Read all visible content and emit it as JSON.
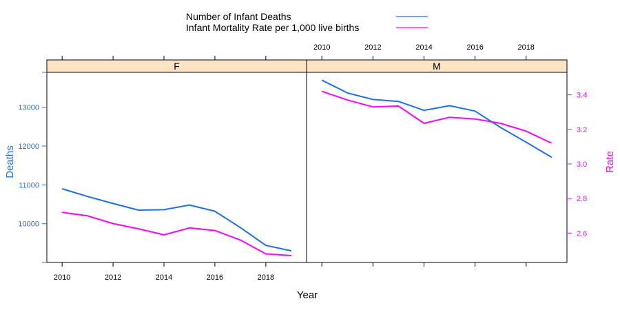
{
  "chart_data": {
    "type": "line",
    "legend": {
      "position": "top",
      "entries": [
        {
          "label": "Number of Infant Deaths",
          "color": "#1a6ef0"
        },
        {
          "label": "Infant Mortality Rate per 1,000 live births",
          "color": "#ff00ff"
        }
      ]
    },
    "xlabel": "Year",
    "ylabel_left": "Deaths",
    "ylabel_right": "Rate",
    "x_ticks": [
      2010,
      2012,
      2014,
      2016,
      2018
    ],
    "left_axis": {
      "ylim": [
        9000,
        13900
      ],
      "ticks": [
        10000,
        11000,
        12000,
        13000
      ]
    },
    "right_axis": {
      "ylim": [
        2.43,
        3.53
      ],
      "ticks": [
        "2.6",
        "2.8",
        "3.0",
        "3.2",
        "3.4"
      ]
    },
    "colors": {
      "deaths": "#1a6ef0",
      "rate": "#ff00ff",
      "strip": "#ffe4c4"
    },
    "panels": [
      {
        "name": "F",
        "x": [
          2010,
          2011,
          2012,
          2013,
          2014,
          2015,
          2016,
          2017,
          2018,
          2019
        ],
        "series": [
          {
            "name": "Number of Infant Deaths",
            "axis": "left",
            "values": [
              10900,
              10700,
              10520,
              10350,
              10360,
              10480,
              10320,
              9900,
              9440,
              9300
            ]
          },
          {
            "name": "Infant Mortality Rate per 1,000 live births",
            "axis": "right",
            "values": [
              2.72,
              2.7,
              2.655,
              2.625,
              2.59,
              2.63,
              2.615,
              2.56,
              2.48,
              2.47
            ]
          }
        ]
      },
      {
        "name": "M",
        "x": [
          2010,
          2011,
          2012,
          2013,
          2014,
          2015,
          2016,
          2017,
          2018,
          2019
        ],
        "series": [
          {
            "name": "Number of Infant Deaths",
            "axis": "left",
            "values": [
              13700,
              13370,
              13200,
              13150,
              12920,
              13040,
              12900,
              12480,
              12100,
              11710
            ]
          },
          {
            "name": "Infant Mortality Rate per 1,000 live births",
            "axis": "right",
            "values": [
              3.42,
              3.37,
              3.33,
              3.335,
              3.235,
              3.27,
              3.26,
              3.235,
              3.19,
              3.12
            ]
          }
        ]
      }
    ]
  }
}
